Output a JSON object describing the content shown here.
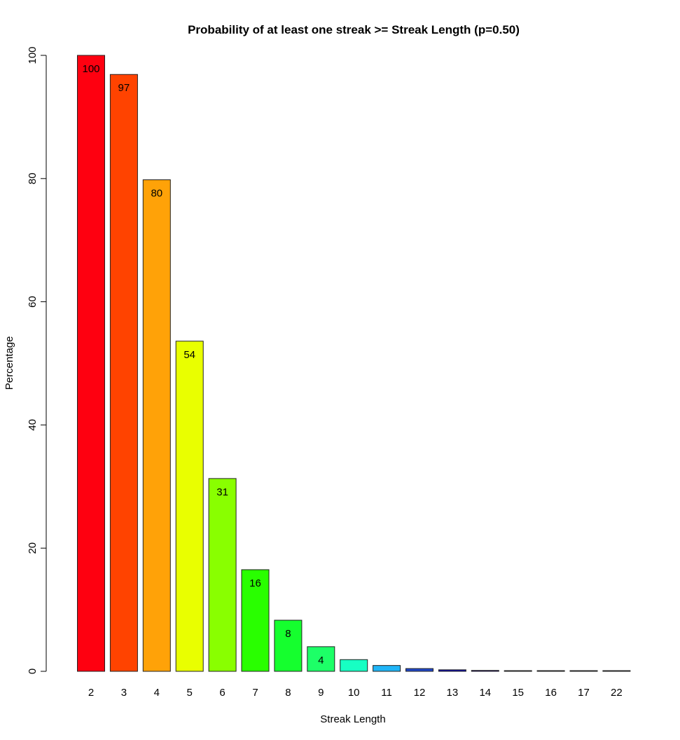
{
  "chart_data": {
    "type": "bar",
    "title": "Probability of at least one streak >= Streak Length (p=0.50)",
    "xlabel": "Streak Length",
    "ylabel": "Percentage",
    "ylim": [
      0,
      100
    ],
    "yticks": [
      0,
      20,
      40,
      60,
      80,
      100
    ],
    "grid": false,
    "legend": "none",
    "categories": [
      "2",
      "3",
      "4",
      "5",
      "6",
      "7",
      "8",
      "9",
      "10",
      "11",
      "12",
      "13",
      "14",
      "15",
      "16",
      "17",
      "22"
    ],
    "values": [
      100,
      96.9,
      79.8,
      53.6,
      31.3,
      16.5,
      8.3,
      4.0,
      1.9,
      0.95,
      0.45,
      0.25,
      0.15,
      0.08,
      0.05,
      0.03,
      0.01
    ],
    "data_labels": [
      "100",
      "97",
      "80",
      "54",
      "31",
      "16",
      "8",
      "4",
      "",
      "",
      "",
      "",
      "",
      "",
      "",
      "",
      ""
    ],
    "colors": [
      "#fe0010",
      "#ff4300",
      "#ffa208",
      "#e9ff00",
      "#89ff00",
      "#29ff00",
      "#15ff2e",
      "#1dff67",
      "#17ffc3",
      "#20b5f7",
      "#1f47cb",
      "#0c0ab3",
      "#240093",
      "#3a0070",
      "#400055",
      "#3b003e",
      "#2c0029"
    ]
  }
}
